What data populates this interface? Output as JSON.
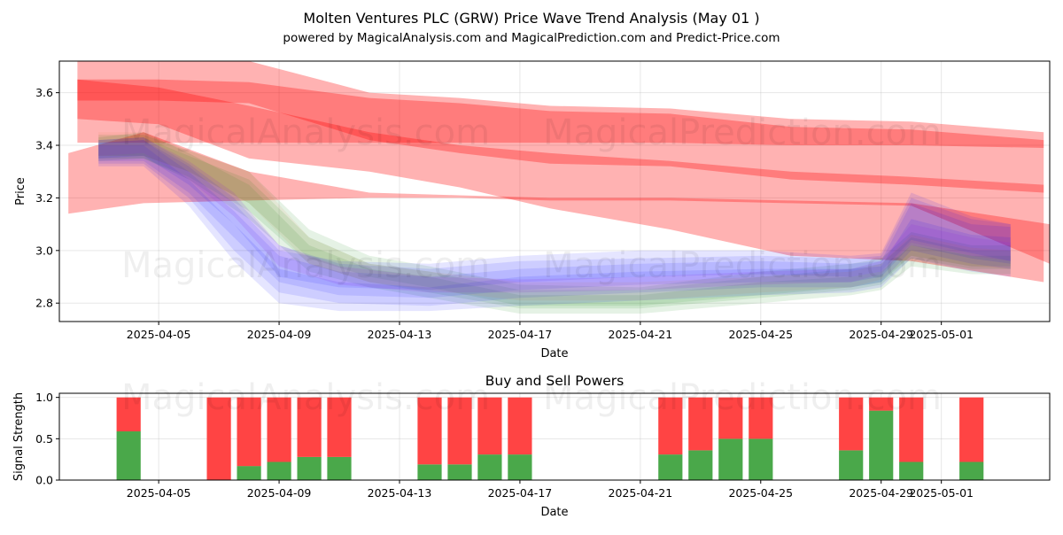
{
  "chart_data": [
    {
      "type": "area",
      "title": "Molten Ventures PLC (GRW) Price Wave Trend Analysis (May 01 )",
      "subtitle": "powered by MagicalAnalysis.com and MagicalPrediction.com and Predict-Price.com",
      "xlabel": "Date",
      "ylabel": "Price",
      "x_ticks": [
        "2025-04-05",
        "2025-04-09",
        "2025-04-13",
        "2025-04-17",
        "2025-04-21",
        "2025-04-25",
        "2025-04-29",
        "2025-05-01"
      ],
      "y_ticks": [
        "2.8",
        "3.0",
        "3.2",
        "3.4",
        "3.6"
      ],
      "xlim_day": [
        0.7,
        33.6
      ],
      "x_tick_days": [
        4,
        8,
        12,
        16,
        20,
        24,
        28,
        30
      ],
      "ylim": [
        2.73,
        3.72
      ],
      "grid": true,
      "watermarks": [
        "MagicalAnalysis.com",
        "MagicalPrediction.com"
      ],
      "series": [
        {
          "name": "red-band-wide",
          "color": "#ff0000",
          "opacity": 0.3,
          "x": [
            1.3,
            4,
            7,
            11,
            14,
            17,
            21,
            25,
            29,
            33.4
          ],
          "upper": [
            3.72,
            3.72,
            3.72,
            3.6,
            3.58,
            3.55,
            3.54,
            3.5,
            3.49,
            3.45
          ],
          "lower": [
            3.41,
            3.41,
            3.41,
            3.41,
            3.41,
            3.41,
            3.41,
            3.4,
            3.4,
            3.39
          ]
        },
        {
          "name": "red-band-high",
          "color": "#ff0000",
          "opacity": 0.3,
          "x": [
            1.3,
            4,
            7,
            11,
            14,
            17,
            21,
            25,
            29,
            33.4
          ],
          "upper": [
            3.65,
            3.65,
            3.64,
            3.58,
            3.56,
            3.53,
            3.52,
            3.47,
            3.46,
            3.42
          ],
          "lower": [
            3.57,
            3.57,
            3.56,
            3.42,
            3.37,
            3.33,
            3.32,
            3.27,
            3.25,
            3.22
          ]
        },
        {
          "name": "red-band-mid",
          "color": "#ff0000",
          "opacity": 0.3,
          "x": [
            1.3,
            4,
            7,
            11,
            14,
            17,
            21,
            25,
            29,
            33.4
          ],
          "upper": [
            3.65,
            3.62,
            3.55,
            3.45,
            3.4,
            3.37,
            3.34,
            3.3,
            3.28,
            3.25
          ],
          "lower": [
            3.5,
            3.48,
            3.35,
            3.3,
            3.24,
            3.16,
            3.08,
            2.98,
            2.96,
            2.88
          ]
        },
        {
          "name": "red-band-low",
          "color": "#ff0000",
          "opacity": 0.3,
          "x": [
            1.0,
            3.5,
            7,
            11,
            14,
            17,
            21,
            25,
            29,
            33.6
          ],
          "upper": [
            3.37,
            3.45,
            3.3,
            3.22,
            3.21,
            3.2,
            3.2,
            3.19,
            3.18,
            3.1
          ],
          "lower": [
            3.14,
            3.18,
            3.19,
            3.2,
            3.2,
            3.19,
            3.19,
            3.18,
            3.17,
            2.95
          ]
        },
        {
          "name": "green-band-1",
          "color": "#008000",
          "opacity": 0.1,
          "x": [
            2,
            3.5,
            5,
            7,
            9,
            11,
            13,
            16,
            20,
            24,
            27,
            28,
            29,
            31,
            32.3
          ],
          "upper": [
            3.42,
            3.43,
            3.36,
            3.27,
            3.05,
            2.95,
            2.92,
            2.85,
            2.85,
            2.9,
            2.93,
            2.95,
            3.05,
            3.0,
            3.0
          ],
          "lower": [
            3.35,
            3.35,
            3.28,
            3.15,
            2.95,
            2.88,
            2.84,
            2.78,
            2.78,
            2.82,
            2.85,
            2.87,
            2.97,
            2.93,
            2.93
          ]
        },
        {
          "name": "green-band-2",
          "color": "#008000",
          "opacity": 0.1,
          "x": [
            2,
            3.5,
            5,
            7,
            9,
            11,
            13,
            16,
            20,
            24,
            27,
            28,
            29,
            31,
            32.3
          ],
          "upper": [
            3.44,
            3.44,
            3.38,
            3.3,
            3.08,
            2.98,
            2.94,
            2.87,
            2.86,
            2.92,
            2.95,
            2.97,
            3.07,
            3.02,
            3.02
          ],
          "lower": [
            3.36,
            3.36,
            3.3,
            3.18,
            2.97,
            2.9,
            2.86,
            2.79,
            2.79,
            2.83,
            2.86,
            2.88,
            2.98,
            2.94,
            2.94
          ]
        },
        {
          "name": "green-band-3",
          "color": "#008000",
          "opacity": 0.1,
          "x": [
            2,
            3.5,
            5,
            7,
            9,
            11,
            13,
            16,
            20,
            24,
            27,
            28,
            29,
            31,
            32.3
          ],
          "upper": [
            3.43,
            3.45,
            3.37,
            3.25,
            3.02,
            2.93,
            2.9,
            2.83,
            2.83,
            2.88,
            2.9,
            2.92,
            3.02,
            2.98,
            2.98
          ],
          "lower": [
            3.34,
            3.35,
            3.27,
            3.12,
            2.92,
            2.86,
            2.82,
            2.76,
            2.76,
            2.8,
            2.83,
            2.85,
            2.94,
            2.91,
            2.91
          ]
        },
        {
          "name": "blue-band-1",
          "color": "#0000ff",
          "opacity": 0.1,
          "x": [
            2,
            3.5,
            5,
            6.5,
            8,
            10,
            13,
            16,
            20,
            24,
            27,
            28,
            29,
            31,
            32.3
          ],
          "upper": [
            3.41,
            3.42,
            3.3,
            3.15,
            2.98,
            2.92,
            2.9,
            2.93,
            2.95,
            2.96,
            2.95,
            2.96,
            3.18,
            3.1,
            3.09
          ],
          "lower": [
            3.33,
            3.33,
            3.2,
            3.0,
            2.84,
            2.8,
            2.79,
            2.82,
            2.84,
            2.86,
            2.86,
            2.88,
            3.0,
            2.95,
            2.93
          ]
        },
        {
          "name": "blue-band-2",
          "color": "#0000ff",
          "opacity": 0.1,
          "x": [
            2,
            3.5,
            5,
            6.5,
            8,
            10,
            13,
            16,
            20,
            24,
            27,
            28,
            29,
            31,
            32.3
          ],
          "upper": [
            3.42,
            3.43,
            3.33,
            3.2,
            3.02,
            2.95,
            2.93,
            2.96,
            2.97,
            2.98,
            2.97,
            2.98,
            3.2,
            3.12,
            3.1
          ],
          "lower": [
            3.34,
            3.34,
            3.22,
            3.05,
            2.88,
            2.83,
            2.82,
            2.85,
            2.87,
            2.88,
            2.88,
            2.9,
            3.02,
            2.97,
            2.95
          ]
        },
        {
          "name": "blue-band-3",
          "color": "#0000ff",
          "opacity": 0.1,
          "x": [
            2,
            3.5,
            5,
            6.5,
            8,
            10,
            13,
            16,
            20,
            24,
            27,
            28,
            29,
            31,
            32.3
          ],
          "upper": [
            3.4,
            3.4,
            3.27,
            3.1,
            2.93,
            2.88,
            2.86,
            2.9,
            2.92,
            2.93,
            2.93,
            2.94,
            3.12,
            3.06,
            3.05
          ],
          "lower": [
            3.32,
            3.32,
            3.17,
            2.96,
            2.8,
            2.77,
            2.77,
            2.79,
            2.81,
            2.83,
            2.84,
            2.86,
            2.97,
            2.92,
            2.9
          ]
        },
        {
          "name": "blue-band-4",
          "color": "#0000ff",
          "opacity": 0.1,
          "x": [
            2,
            3.5,
            5,
            6.5,
            8,
            10,
            13,
            16,
            20,
            24,
            27,
            28,
            29,
            31,
            32.3
          ],
          "upper": [
            3.41,
            3.42,
            3.32,
            3.18,
            3.0,
            2.96,
            2.95,
            2.98,
            3.0,
            3.0,
            2.98,
            2.99,
            3.22,
            3.13,
            3.1
          ],
          "lower": [
            3.35,
            3.36,
            3.25,
            3.1,
            2.9,
            2.86,
            2.85,
            2.88,
            2.9,
            2.91,
            2.9,
            2.92,
            3.04,
            2.99,
            2.96
          ]
        },
        {
          "name": "purple-band-1",
          "color": "#8a2be2",
          "opacity": 0.15,
          "x": [
            2,
            3.5,
            5,
            6.5,
            8,
            10,
            13,
            16,
            20,
            24,
            27,
            28,
            29,
            31,
            32.3
          ],
          "upper": [
            3.42,
            3.43,
            3.34,
            3.22,
            3.02,
            2.94,
            2.9,
            2.89,
            2.9,
            2.92,
            2.93,
            2.96,
            3.1,
            3.05,
            3.03
          ],
          "lower": [
            3.36,
            3.37,
            3.27,
            3.13,
            2.94,
            2.87,
            2.84,
            2.84,
            2.85,
            2.87,
            2.88,
            2.91,
            3.03,
            2.98,
            2.96
          ]
        },
        {
          "name": "orange-band-1",
          "color": "#d2691e",
          "opacity": 0.08,
          "x": [
            2,
            3.5,
            5,
            7,
            9,
            11,
            13,
            16,
            20,
            24,
            27,
            28,
            29,
            31,
            32.3
          ],
          "upper": [
            3.45,
            3.45,
            3.38,
            3.3,
            3.05,
            2.95,
            2.92,
            2.88,
            2.88,
            2.9,
            2.92,
            2.95,
            3.06,
            3.01,
            3.0
          ],
          "lower": [
            3.36,
            3.36,
            3.3,
            3.18,
            2.95,
            2.88,
            2.85,
            2.81,
            2.81,
            2.84,
            2.86,
            2.89,
            2.98,
            2.94,
            2.93
          ]
        }
      ]
    },
    {
      "type": "bar",
      "title": "Buy and Sell Powers",
      "xlabel": "Date",
      "ylabel": "Signal Strength",
      "x_ticks": [
        "2025-04-05",
        "2025-04-09",
        "2025-04-13",
        "2025-04-17",
        "2025-04-21",
        "2025-04-25",
        "2025-04-29",
        "2025-05-01"
      ],
      "y_ticks": [
        "0.0",
        "0.5",
        "1.0"
      ],
      "ylim": [
        0,
        1.05
      ],
      "buy_color": "#4aa84a",
      "sell_color": "#ff4444",
      "days": [
        3,
        6,
        7,
        8,
        9,
        10,
        13,
        14,
        15,
        16,
        21,
        22,
        23,
        24,
        27,
        28,
        29,
        31
      ],
      "buy": [
        0.59,
        0.0,
        0.17,
        0.22,
        0.28,
        0.28,
        0.19,
        0.19,
        0.31,
        0.31,
        0.31,
        0.36,
        0.5,
        0.5,
        0.36,
        0.84,
        0.22,
        0.22
      ],
      "sell": [
        0.41,
        1.0,
        0.83,
        0.78,
        0.72,
        0.72,
        0.81,
        0.81,
        0.69,
        0.69,
        0.69,
        0.64,
        0.5,
        0.5,
        0.64,
        0.16,
        0.78,
        0.78
      ]
    }
  ]
}
